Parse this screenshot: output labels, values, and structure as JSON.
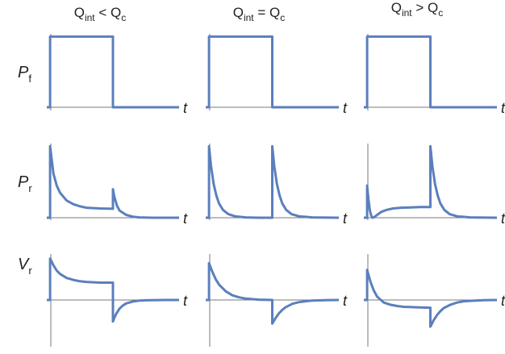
{
  "accent_color": "#5b7fbd",
  "chart_data": {
    "type": "line",
    "columns": [
      {
        "title_main": "Q",
        "title_sub": "int",
        "title_rel": " < Q",
        "title_sub2": "c"
      },
      {
        "title_main": "Q",
        "title_sub": "int",
        "title_rel": " = Q",
        "title_sub2": "c"
      },
      {
        "title_main": "Q",
        "title_sub": "int",
        "title_rel": " > Q",
        "title_sub2": "c"
      }
    ],
    "rows": [
      {
        "label_main": "P",
        "label_sub": "f"
      },
      {
        "label_main": "P",
        "label_sub": "r"
      },
      {
        "label_main": "V",
        "label_sub": "r"
      }
    ],
    "xlabel": "t",
    "xlim": [
      0,
      2.0
    ],
    "pulse": {
      "start": 0.05,
      "end": 1.0
    },
    "panels": [
      [
        {
          "ylim": [
            0,
            1.05
          ],
          "series": [
            {
              "x": [
                0,
                0.05,
                0.05,
                1.0,
                1.0,
                2.0
              ],
              "y": [
                0,
                0,
                1,
                1,
                0,
                0
              ]
            }
          ]
        },
        {
          "ylim": [
            0,
            1.05
          ],
          "series": [
            {
              "x": [
                0,
                0.05,
                0.05,
                0.1,
                0.15,
                0.2,
                0.3,
                0.4,
                0.5,
                0.6,
                0.8,
                1.0,
                1.0,
                1.02,
                1.06,
                1.1,
                1.2,
                1.3,
                1.4,
                1.6,
                2.0
              ],
              "y": [
                0,
                0,
                1.0,
                0.62,
                0.45,
                0.35,
                0.24,
                0.19,
                0.16,
                0.14,
                0.13,
                0.125,
                0.4,
                0.3,
                0.17,
                0.1,
                0.04,
                0.015,
                0.005,
                0,
                0
              ]
            }
          ]
        },
        {
          "ylim": [
            -0.75,
            0.7
          ],
          "series": [
            {
              "x": [
                0,
                0.05,
                0.05,
                0.1,
                0.15,
                0.2,
                0.3,
                0.4,
                0.5,
                0.6,
                0.8,
                1.0,
                1.0,
                1.02,
                1.05,
                1.1,
                1.15,
                1.2,
                1.3,
                1.4,
                1.5,
                1.6,
                1.8,
                2.0
              ],
              "y": [
                0,
                0,
                0.62,
                0.52,
                0.44,
                0.39,
                0.33,
                0.3,
                0.28,
                0.27,
                0.26,
                0.26,
                -0.5,
                -0.42,
                -0.32,
                -0.2,
                -0.13,
                -0.08,
                -0.035,
                -0.015,
                -0.007,
                -0.003,
                0,
                0
              ]
            }
          ]
        }
      ],
      [
        {
          "ylim": [
            0,
            1.05
          ],
          "series": [
            {
              "x": [
                0,
                0.05,
                0.05,
                1.0,
                1.0,
                2.0
              ],
              "y": [
                0,
                0,
                1,
                1,
                0,
                0
              ]
            }
          ]
        },
        {
          "ylim": [
            0,
            1.05
          ],
          "series": [
            {
              "x": [
                0,
                0.05,
                0.05,
                0.08,
                0.12,
                0.16,
                0.2,
                0.26,
                0.34,
                0.44,
                0.6,
                0.8,
                1.0,
                1.0,
                1.03,
                1.07,
                1.11,
                1.15,
                1.21,
                1.29,
                1.4,
                1.6,
                2.0
              ],
              "y": [
                0,
                0,
                1.0,
                0.72,
                0.47,
                0.31,
                0.2,
                0.11,
                0.05,
                0.02,
                0.005,
                0,
                0,
                1.0,
                0.72,
                0.47,
                0.31,
                0.2,
                0.11,
                0.05,
                0.02,
                0.004,
                0
              ]
            }
          ]
        },
        {
          "ylim": [
            -0.75,
            0.7
          ],
          "series": [
            {
              "x": [
                0,
                0.05,
                0.05,
                0.1,
                0.15,
                0.2,
                0.3,
                0.4,
                0.5,
                0.6,
                0.8,
                1.0,
                1.0,
                1.05,
                1.1,
                1.15,
                1.2,
                1.3,
                1.4,
                1.5,
                1.6,
                1.8,
                2.0
              ],
              "y": [
                0,
                0,
                0.55,
                0.42,
                0.31,
                0.23,
                0.13,
                0.07,
                0.04,
                0.02,
                0.005,
                0,
                -0.55,
                -0.42,
                -0.31,
                -0.23,
                -0.17,
                -0.09,
                -0.05,
                -0.03,
                -0.015,
                -0.004,
                0
              ]
            }
          ]
        }
      ],
      [
        {
          "ylim": [
            0,
            1.05
          ],
          "series": [
            {
              "x": [
                0,
                0.05,
                0.05,
                1.0,
                1.0,
                2.0
              ],
              "y": [
                0,
                0,
                1,
                1,
                0,
                0
              ]
            }
          ]
        },
        {
          "ylim": [
            0,
            1.05
          ],
          "series": [
            {
              "x": [
                0,
                0.05,
                0.05,
                0.07,
                0.09,
                0.11,
                0.13,
                0.16,
                0.2,
                0.26,
                0.34,
                0.44,
                0.56,
                0.7,
                0.85,
                1.0,
                1.0,
                1.03,
                1.07,
                1.11,
                1.15,
                1.21,
                1.29,
                1.4,
                1.6,
                2.0
              ],
              "y": [
                0,
                0,
                0.45,
                0.25,
                0.11,
                0.03,
                0,
                0.01,
                0.04,
                0.08,
                0.11,
                0.13,
                0.14,
                0.145,
                0.15,
                0.15,
                1.0,
                0.72,
                0.47,
                0.31,
                0.2,
                0.11,
                0.05,
                0.02,
                0.004,
                0
              ]
            }
          ]
        },
        {
          "ylim": [
            -0.75,
            0.7
          ],
          "series": [
            {
              "x": [
                0,
                0.05,
                0.05,
                0.1,
                0.15,
                0.2,
                0.3,
                0.4,
                0.5,
                0.6,
                0.8,
                1.0,
                1.0,
                1.05,
                1.1,
                1.15,
                1.2,
                1.3,
                1.4,
                1.5,
                1.6,
                1.8,
                2.0
              ],
              "y": [
                0,
                0,
                0.45,
                0.27,
                0.14,
                0.05,
                -0.06,
                -0.11,
                -0.14,
                -0.16,
                -0.17,
                -0.18,
                -0.62,
                -0.47,
                -0.35,
                -0.26,
                -0.19,
                -0.11,
                -0.06,
                -0.03,
                -0.02,
                -0.005,
                0
              ]
            }
          ]
        }
      ]
    ]
  }
}
